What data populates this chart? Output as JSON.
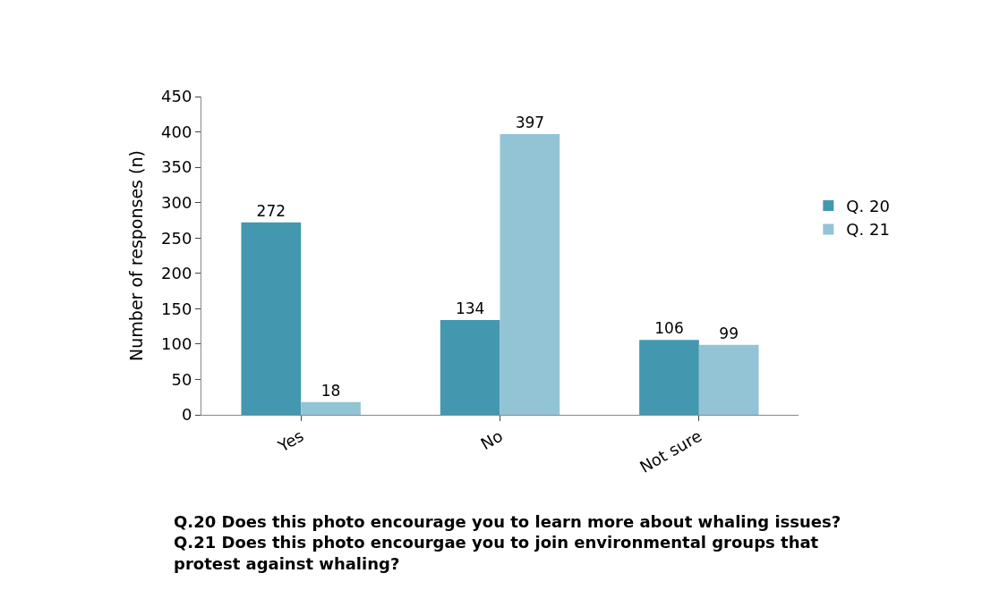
{
  "chart_data": {
    "type": "bar",
    "ylabel": "Number of responses (n)",
    "categories": [
      "Yes",
      "No",
      "Not sure"
    ],
    "series": [
      {
        "name": "Q. 20",
        "color": "#4398b0",
        "values": [
          272,
          134,
          106
        ]
      },
      {
        "name": "Q. 21",
        "color": "#93c4d6",
        "values": [
          18,
          397,
          99
        ]
      }
    ],
    "ylim": [
      0,
      450
    ],
    "yticks": [
      0,
      50,
      100,
      150,
      200,
      250,
      300,
      350,
      400,
      450
    ],
    "grid": false,
    "legend": "right",
    "data_labels": true,
    "annotations": [
      "Q.20 Does this photo encourage you to learn more about whaling issues?\nQ.21 Does this photo encourgae you to join environmental groups that\nprotest against whaling?"
    ]
  }
}
